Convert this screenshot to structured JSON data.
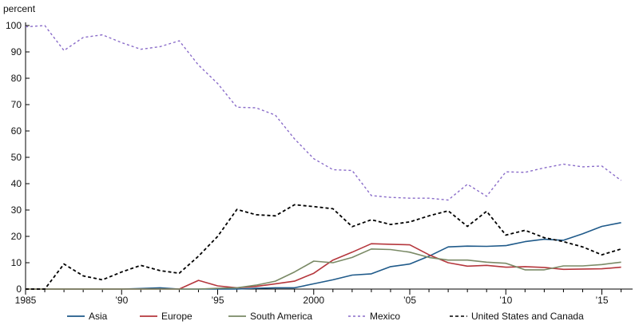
{
  "chart_data": {
    "type": "line",
    "unit_label": "percent",
    "ylim": [
      0,
      100
    ],
    "y_ticks": [
      0,
      10,
      20,
      30,
      40,
      50,
      60,
      70,
      80,
      90,
      100
    ],
    "xlim": [
      1985,
      2016.6
    ],
    "x_ticks": [
      {
        "x": 1985,
        "label": "1985"
      },
      {
        "x": 1990,
        "label": "’90"
      },
      {
        "x": 1995,
        "label": "’95"
      },
      {
        "x": 2000,
        "label": "2000"
      },
      {
        "x": 2005,
        "label": "’05"
      },
      {
        "x": 2010,
        "label": "’10"
      },
      {
        "x": 2015,
        "label": "’15"
      }
    ],
    "grid": false,
    "legend_position": "bottom",
    "x": [
      1985,
      1986,
      1987,
      1988,
      1989,
      1990,
      1991,
      1992,
      1993,
      1994,
      1995,
      1996,
      1997,
      1998,
      1999,
      2000,
      2001,
      2002,
      2003,
      2004,
      2005,
      2006,
      2007,
      2008,
      2009,
      2010,
      2011,
      2012,
      2013,
      2014,
      2015,
      2016
    ],
    "series": [
      {
        "name": "Asia",
        "color": "#1f5a8a",
        "dash": "solid",
        "values": [
          0,
          0,
          0,
          0,
          0,
          0,
          0.2,
          0.5,
          0,
          0,
          0,
          0,
          0.3,
          0.5,
          0.5,
          2,
          3.5,
          5.3,
          5.8,
          8.5,
          9.5,
          12.5,
          16,
          16.3,
          16.2,
          16.5,
          18,
          18.9,
          18.5,
          21,
          23.8,
          25.2
        ]
      },
      {
        "name": "Europe",
        "color": "#b5373d",
        "dash": "solid",
        "values": [
          0,
          0,
          0,
          0,
          0,
          0,
          0,
          0,
          0,
          3.3,
          1.2,
          0.5,
          1,
          2,
          3,
          6,
          11,
          14,
          17.2,
          17,
          16.8,
          13,
          10,
          8.7,
          9,
          8.3,
          8.5,
          8.2,
          7.5,
          7.6,
          7.7,
          8.3
        ]
      },
      {
        "name": "South America",
        "color": "#7a8a66",
        "dash": "solid",
        "values": [
          0,
          0,
          0,
          0,
          0,
          0,
          0,
          0,
          0,
          0,
          0.3,
          0.5,
          1.5,
          3,
          6.5,
          10.6,
          10,
          12,
          15.2,
          15,
          14,
          12,
          11,
          11,
          10.2,
          9.8,
          7.3,
          7.3,
          8.8,
          8.8,
          9.3,
          10.2
        ]
      },
      {
        "name": "Mexico",
        "color": "#8a6cc9",
        "dash": "dashed",
        "values": [
          99.5,
          100,
          90.5,
          95.5,
          96.5,
          93.5,
          91,
          92,
          94.2,
          85,
          78,
          69,
          68.8,
          66,
          57,
          49.5,
          45.3,
          45,
          35.5,
          34.8,
          34.5,
          34.5,
          33.8,
          39.8,
          35.2,
          44.5,
          44.3,
          46,
          47.4,
          46.4,
          46.7,
          41.2
        ]
      },
      {
        "name": "United States and Canada",
        "color": "#000000",
        "dash": "dashed",
        "values": [
          0,
          0,
          9.5,
          5,
          3.5,
          6.5,
          9,
          7,
          6,
          12.5,
          20,
          30.2,
          28.2,
          27.8,
          32,
          31.3,
          30.5,
          23.7,
          26.3,
          24.5,
          25.5,
          27.8,
          29.7,
          23.8,
          29.5,
          20.5,
          22.3,
          19.5,
          18,
          16,
          13,
          15.2
        ]
      }
    ]
  }
}
